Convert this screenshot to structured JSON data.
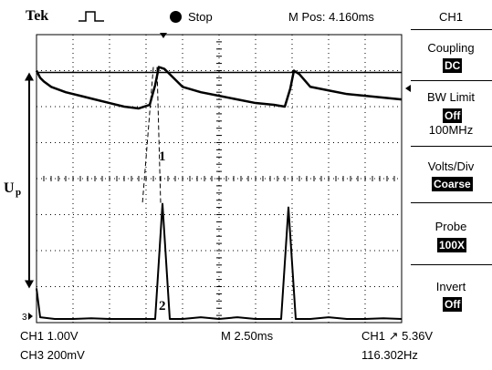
{
  "header": {
    "brand": "Tek",
    "run_state": "Stop",
    "m_pos": "M Pos: 4.160ms"
  },
  "menu": {
    "channel": "CH1",
    "coupling_label": "Coupling",
    "coupling_value": "DC",
    "bw_label": "BW Limit",
    "bw_value": "Off",
    "bw_freq": "100MHz",
    "volts_label": "Volts/Div",
    "volts_value": "Coarse",
    "probe_label": "Probe",
    "probe_value": "100X",
    "invert_label": "Invert",
    "invert_value": "Off"
  },
  "footer": {
    "ch1_scale": "CH1  1.00V",
    "ch3_scale": "CH3  200mV",
    "timebase": "M 2.50ms",
    "trigger": "CH1 ↗ 5.36V",
    "frequency": "116.302Hz"
  },
  "annotations": {
    "up_main": "U",
    "up_sub": "p",
    "trace1_label": "1",
    "trace2_label": "2",
    "ch3_marker": "3"
  },
  "colors": {
    "trace": "#000000",
    "grid": "#000000",
    "background": "#ffffff"
  },
  "chart_data": {
    "type": "line",
    "title": "",
    "xlabel": "",
    "ylabel": "",
    "grid": true,
    "grid_divisions": {
      "x": 10,
      "y": 8
    },
    "x_unit": "div",
    "y_unit": "div",
    "xlim": [
      0,
      10
    ],
    "ylim": [
      0,
      8
    ],
    "series": [
      {
        "x": [
          0,
          0.1,
          0.2,
          0.4,
          0.8,
          1.2,
          1.6,
          2.0,
          2.4,
          2.8,
          3.1,
          3.25,
          3.35,
          3.5,
          3.75,
          4.0,
          4.5,
          5.0,
          5.5,
          6.0,
          6.5,
          6.8,
          6.95,
          7.05,
          7.2,
          7.5,
          8.0,
          8.5,
          9.0,
          9.5,
          10.0
        ],
        "y": [
          7.0,
          6.8,
          6.7,
          6.55,
          6.4,
          6.3,
          6.2,
          6.1,
          6.0,
          5.95,
          6.05,
          6.6,
          7.1,
          7.05,
          6.8,
          6.55,
          6.4,
          6.3,
          6.2,
          6.1,
          6.05,
          6.0,
          6.5,
          7.0,
          6.9,
          6.55,
          6.45,
          6.35,
          6.3,
          6.25,
          6.2
        ]
      },
      {
        "x": [
          0,
          0.1,
          0.5,
          1.0,
          1.5,
          2.0,
          2.5,
          3.0,
          3.25,
          3.45,
          3.65,
          3.85,
          4.0,
          4.5,
          5.0,
          5.5,
          6.0,
          6.5,
          6.7,
          6.9,
          7.1,
          7.3,
          7.5,
          8.0,
          8.5,
          9.0,
          9.5,
          10.0
        ],
        "y": [
          0.95,
          0.15,
          0.1,
          0.1,
          0.12,
          0.1,
          0.1,
          0.1,
          0.1,
          3.3,
          0.1,
          0.1,
          0.1,
          0.15,
          0.1,
          0.15,
          0.1,
          0.1,
          0.1,
          3.2,
          0.1,
          0.1,
          0.1,
          0.15,
          0.1,
          0.1,
          0.12,
          0.1
        ]
      }
    ],
    "markers": {
      "reference_line_y": 6.95,
      "dashed_drop_x": 3.2,
      "dashed_drop_from_y": 7.1,
      "dashed_drop_to_y": 3.3,
      "up_arrow_from_y": 6.95,
      "up_arrow_to_y": 0.95
    }
  }
}
